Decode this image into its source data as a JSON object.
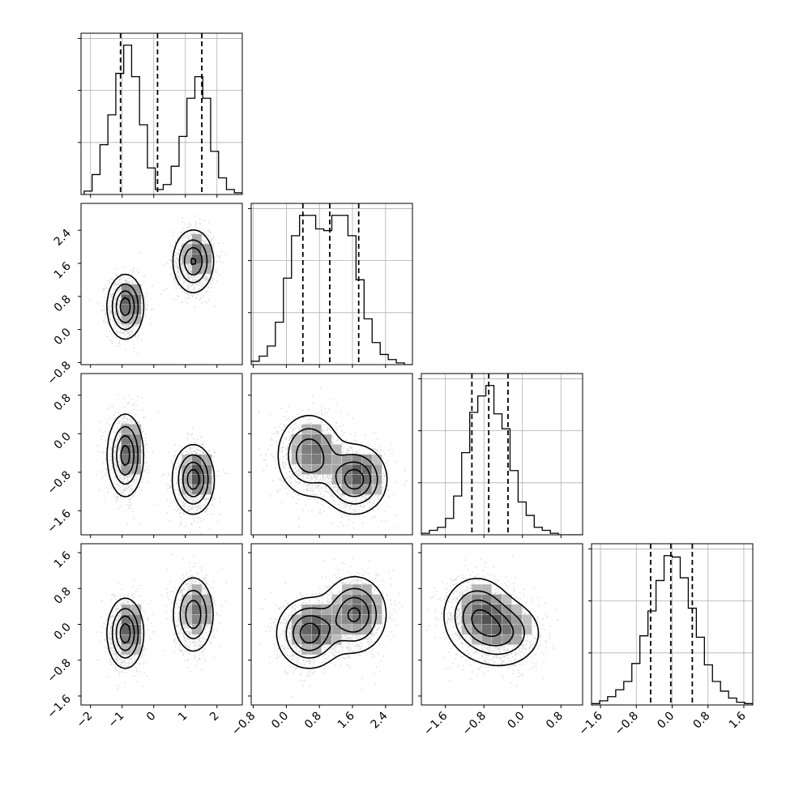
{
  "chart_data": {
    "type": "corner",
    "dimensions": 4,
    "axes": [
      {
        "range": [
          -2.3,
          2.8
        ],
        "ticks": [
          -2,
          -1,
          0,
          1,
          2
        ],
        "tick_labels": [
          "−2",
          "−1",
          "0",
          "1",
          "2"
        ]
      },
      {
        "range": [
          -0.85,
          3.05
        ],
        "ticks": [
          -0.8,
          0.0,
          0.8,
          1.6,
          2.4
        ],
        "tick_labels": [
          "−0.8",
          "0.0",
          "0.8",
          "1.6",
          "2.4"
        ]
      },
      {
        "range": [
          -2.1,
          1.25
        ],
        "ticks": [
          -1.6,
          -0.8,
          0.0,
          0.8
        ],
        "tick_labels": [
          "−1.6",
          "−0.8",
          "0.0",
          "0.8"
        ]
      },
      {
        "range": [
          -1.8,
          1.8
        ],
        "ticks": [
          -1.6,
          -0.8,
          0.0,
          0.8,
          1.6
        ],
        "tick_labels": [
          "−1.6",
          "−0.8",
          "0.0",
          "0.8",
          "1.6"
        ]
      }
    ],
    "quantiles": [
      [
        -1.05,
        0.12,
        1.52
      ],
      [
        0.4,
        1.05,
        1.75
      ],
      [
        -1.05,
        -0.7,
        -0.3
      ],
      [
        -0.48,
        -0.03,
        0.45
      ]
    ],
    "histograms": [
      {
        "bins": [
          -2.2,
          -1.95,
          -1.7,
          -1.45,
          -1.2,
          -0.95,
          -0.7,
          -0.45,
          -0.2,
          0.05,
          0.3,
          0.55,
          0.8,
          1.05,
          1.3,
          1.55,
          1.8,
          2.05,
          2.3,
          2.55,
          2.8
        ],
        "counts": [
          2,
          12,
          30,
          48,
          73,
          90,
          71,
          42,
          16,
          3,
          6,
          17,
          35,
          58,
          71,
          58,
          26,
          10,
          3,
          1
        ]
      },
      {
        "bins": [
          -0.85,
          -0.655,
          -0.46,
          -0.265,
          -0.07,
          0.125,
          0.32,
          0.515,
          0.71,
          0.905,
          1.1,
          1.295,
          1.49,
          1.685,
          1.88,
          2.075,
          2.27,
          2.465,
          2.66,
          2.855,
          3.05
        ],
        "counts": [
          2,
          5,
          11,
          25,
          51,
          76,
          88,
          88,
          80,
          79,
          88,
          88,
          76,
          50,
          27,
          13,
          6,
          3,
          1,
          0
        ]
      },
      {
        "bins": [
          -2.1,
          -1.9325,
          -1.765,
          -1.5975,
          -1.43,
          -1.2625,
          -1.095,
          -0.9275,
          -0.76,
          -0.5925,
          -0.425,
          -0.2575,
          -0.09,
          0.0775,
          0.245,
          0.4125,
          0.58,
          0.7475,
          0.915,
          1.0825,
          1.25
        ],
        "counts": [
          1,
          3,
          5,
          11,
          26,
          55,
          82,
          93,
          100,
          81,
          71,
          43,
          22,
          13,
          5,
          3,
          1,
          0,
          0,
          0
        ]
      },
      {
        "bins": [
          -1.8,
          -1.62,
          -1.44,
          -1.26,
          -1.08,
          -0.9,
          -0.72,
          -0.54,
          -0.36,
          -0.18,
          0.0,
          0.18,
          0.36,
          0.54,
          0.72,
          0.9,
          1.08,
          1.26,
          1.44,
          1.62,
          1.8
        ],
        "counts": [
          1,
          3,
          6,
          11,
          17,
          30,
          50,
          68,
          90,
          108,
          107,
          92,
          70,
          49,
          29,
          17,
          10,
          5,
          2,
          1
        ]
      }
    ],
    "mixture_components": [
      {
        "mean": [
          -0.9,
          0.55,
          -0.45,
          -0.2
        ],
        "sd": [
          0.28,
          0.38,
          0.42,
          0.38
        ]
      },
      {
        "mean": [
          1.25,
          1.65,
          -0.95,
          0.22
        ],
        "sd": [
          0.32,
          0.38,
          0.35,
          0.42
        ]
      }
    ],
    "contour_levels": 4,
    "grid": true,
    "quantile_line_style": "dashed"
  }
}
